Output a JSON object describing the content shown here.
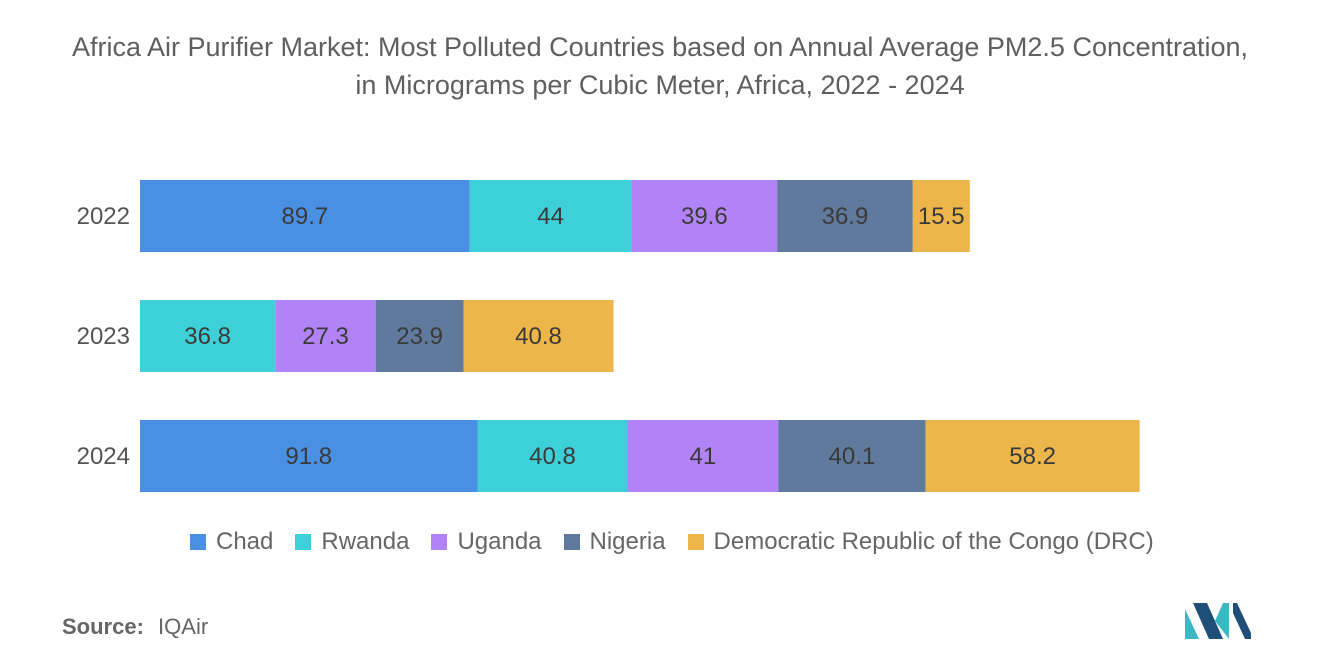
{
  "chart_data": {
    "type": "bar",
    "orientation": "horizontal",
    "stacked": true,
    "title": "Africa Air Purifier Market: Most Polluted Countries based on Annual Average PM2.5 Concentration, in Micrograms per Cubic Meter, Africa, 2022 - 2024",
    "categories": [
      "2022",
      "2023",
      "2024"
    ],
    "series": [
      {
        "name": "Chad",
        "color": "#4a90e2",
        "values": [
          89.7,
          null,
          91.8
        ]
      },
      {
        "name": "Rwanda",
        "color": "#3ed0d8",
        "values": [
          44,
          36.8,
          40.8
        ]
      },
      {
        "name": "Uganda",
        "color": "#b283f7",
        "values": [
          39.6,
          27.3,
          41
        ]
      },
      {
        "name": "Nigeria",
        "color": "#5f7a9c",
        "values": [
          36.9,
          23.9,
          40.1
        ]
      },
      {
        "name": "Democratic Republic of the Congo (DRC)",
        "color": "#ecb64a",
        "values": [
          15.5,
          40.8,
          58.2
        ]
      }
    ],
    "xlim": [
      0,
      272
    ],
    "grid": false,
    "legend": "bottom"
  },
  "source": {
    "label": "Source:",
    "value": "IQAir"
  },
  "colors": {
    "logo_dark": "#1f4e79",
    "logo_light": "#3bb8c4"
  }
}
